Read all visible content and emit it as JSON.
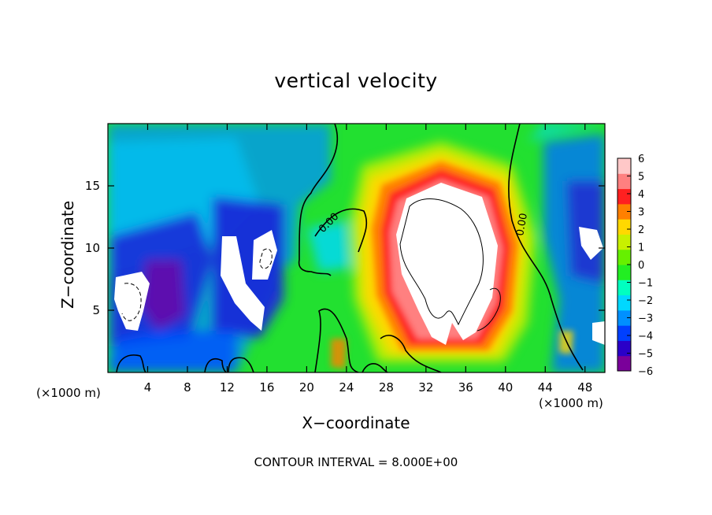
{
  "chart_data": {
    "type": "heatmap",
    "title": "vertical velocity",
    "xlabel": "X−coordinate",
    "ylabel": "Z−coordinate",
    "x_unit_label": "(×1000 m)",
    "x_ticks": [
      4,
      8,
      12,
      16,
      20,
      24,
      28,
      32,
      36,
      40,
      44,
      48
    ],
    "y_ticks": [
      5,
      10,
      15
    ],
    "xlim": [
      0,
      50
    ],
    "ylim": [
      0,
      20
    ],
    "contour_labels": [
      "0.00",
      "0.00"
    ],
    "colorbar": {
      "ticks": [
        6,
        5,
        4,
        3,
        2,
        1,
        0,
        "−1",
        "−2",
        "−3",
        "−4",
        "−5",
        "−6"
      ],
      "range": [
        -6,
        6
      ],
      "colors": [
        "#7a009a",
        "#2a00c8",
        "#0040ff",
        "#0090ff",
        "#00d8ff",
        "#00ffc0",
        "#22ee22",
        "#66f000",
        "#c8f000",
        "#ffd800",
        "#ff8000",
        "#ff2020",
        "#ff8080",
        "#ffc8c8"
      ]
    },
    "footnote": "CONTOUR INTERVAL = 8.000E+00"
  }
}
